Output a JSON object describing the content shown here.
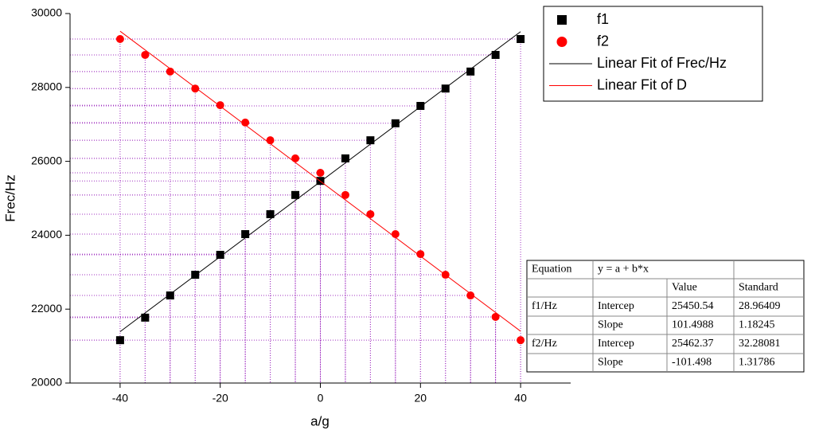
{
  "chart_data": {
    "type": "scatter",
    "x_label": "a/g",
    "y_label": "Frec/Hz",
    "x": [
      -40,
      -35,
      -30,
      -25,
      -20,
      -15,
      -10,
      -5,
      0,
      5,
      10,
      15,
      20,
      25,
      30,
      35,
      40
    ],
    "series": [
      {
        "name": "f1",
        "color": "#000000",
        "marker": "square",
        "values": [
          21160,
          21770,
          22370,
          22930,
          23470,
          24030,
          24570,
          25090,
          25470,
          26080,
          26570,
          27030,
          27500,
          27970,
          28430,
          28880,
          29310
        ]
      },
      {
        "name": "f2",
        "color": "#ff0000",
        "marker": "circle",
        "values": [
          29310,
          28880,
          28430,
          27970,
          27520,
          27050,
          26570,
          26080,
          25690,
          25090,
          24570,
          24030,
          23490,
          22930,
          22370,
          21790,
          21160
        ]
      },
      {
        "name": "Linear Fit of Frec/Hz",
        "color": "#000000",
        "marker": "line",
        "x": [
          -40,
          40
        ],
        "values": [
          21390.6,
          29510.5
        ]
      },
      {
        "name": "Linear Fit of D",
        "color": "#ff0000",
        "marker": "line",
        "x": [
          -40,
          40
        ],
        "values": [
          29522.3,
          21402.5
        ]
      }
    ],
    "xlim": [
      -50,
      50
    ],
    "xticks": [
      -40,
      -20,
      0,
      20,
      40
    ],
    "ylim": [
      20000,
      30000
    ],
    "yticks": [
      20000,
      22000,
      24000,
      26000,
      28000,
      30000
    ],
    "drop_lines": true,
    "drop_line_color": "#a030c0",
    "legend": "upper right"
  },
  "fit_table": {
    "label": "Equation",
    "equation": "y = a + b*x",
    "columns": [
      "Value",
      "Standard"
    ],
    "groups": [
      {
        "name": "f1/Hz",
        "rows": [
          [
            "Intercep",
            "25450.54",
            "28.96409"
          ],
          [
            "Slope",
            "101.4988",
            "1.18245"
          ]
        ]
      },
      {
        "name": "f2/Hz",
        "rows": [
          [
            "Intercep",
            "25462.37",
            "32.28081"
          ],
          [
            "Slope",
            "-101.498",
            "1.31786"
          ]
        ]
      }
    ]
  }
}
